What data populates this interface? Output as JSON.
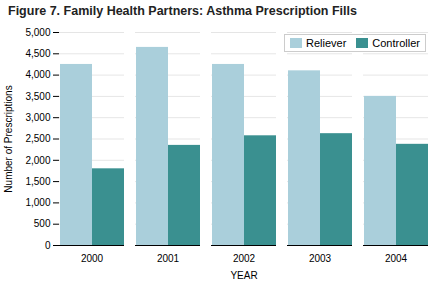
{
  "chart_data": {
    "type": "bar",
    "title": "Figure 7. Family Health Partners: Asthma Prescription Fills",
    "xlabel": "YEAR",
    "ylabel": "Number of Prescriptions",
    "categories": [
      "2000",
      "2001",
      "2002",
      "2003",
      "2004"
    ],
    "series": [
      {
        "name": "Reliever",
        "color": "#aacfdb",
        "values": [
          4250,
          4650,
          4250,
          4100,
          3500
        ]
      },
      {
        "name": "Controller",
        "color": "#3a9090",
        "values": [
          1800,
          2350,
          2575,
          2625,
          2375
        ]
      }
    ],
    "ylim": [
      0,
      5000
    ],
    "yticks": [
      0,
      500,
      {
        "value": 1000,
        "label": "1,000"
      },
      {
        "value": 1500,
        "label": "1,500"
      },
      {
        "value": 2000,
        "label": "2,000"
      },
      {
        "value": 2500,
        "label": "2,500"
      },
      {
        "value": 3000,
        "label": "3,000"
      },
      {
        "value": 3500,
        "label": "3,500"
      },
      {
        "value": 4000,
        "label": "4,000"
      },
      {
        "value": 4500,
        "label": "4,500"
      },
      {
        "value": 5000,
        "label": "5,000"
      }
    ],
    "grid": true,
    "legend": "upper right"
  }
}
